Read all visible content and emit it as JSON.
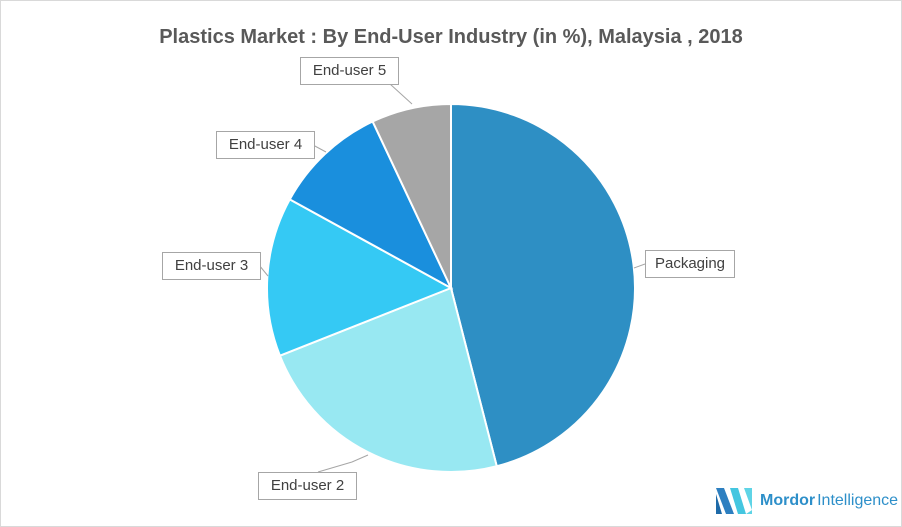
{
  "chart_data": {
    "type": "pie",
    "title": "Plastics Market : By End-User Industry (in %), Malaysia , 2018",
    "categories": [
      "Packaging",
      "End-user 2",
      "End-user 3",
      "End-user 4",
      "End-user 5"
    ],
    "values": [
      46,
      23,
      14,
      10,
      7
    ],
    "colors": [
      "#2e8fc4",
      "#98e8f2",
      "#35c9f4",
      "#1a8fdd",
      "#a6a6a6"
    ],
    "start_angle": "top, clockwise",
    "legend": "none (callout labels)"
  },
  "logo": {
    "brand_bold": "Mordor",
    "brand_light": "Intelligence"
  }
}
